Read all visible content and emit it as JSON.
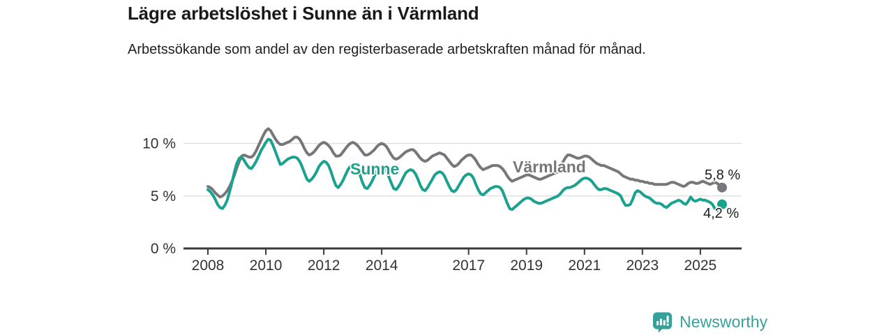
{
  "header": {
    "title": "Lägre arbetslöshet i Sunne än i Värmland",
    "subtitle": "Arbetssökande som andel av den registerbaserade arbetskraften månad för månad."
  },
  "chart_data": {
    "type": "line",
    "title": "Lägre arbetslöshet i Sunne än i Värmland",
    "subtitle": "Arbetssökande som andel av den registerbaserade arbetskraften månad för månad.",
    "frequency": "monthly",
    "x_start": "2008-01",
    "x_end": "2025-10",
    "ylim": [
      0,
      12
    ],
    "grid": "horizontal",
    "legend_position": "inline-labels",
    "yticks": [
      {
        "label": "10 %",
        "value": 10
      },
      {
        "label": "5 %",
        "value": 5
      },
      {
        "label": "0 %",
        "value": 0
      }
    ],
    "xticks": [
      {
        "label": "2008",
        "year": 2008
      },
      {
        "label": "2010",
        "year": 2010
      },
      {
        "label": "2012",
        "year": 2012
      },
      {
        "label": "2014",
        "year": 2014
      },
      {
        "label": "2017",
        "year": 2017
      },
      {
        "label": "2019",
        "year": 2019
      },
      {
        "label": "2021",
        "year": 2021
      },
      {
        "label": "2023",
        "year": 2023
      },
      {
        "label": "2025",
        "year": 2025
      }
    ],
    "series": [
      {
        "name": "Värmland",
        "color": "#76777a",
        "end_label": "5,8 %",
        "end_value": 5.8,
        "values": [
          5.9,
          5.8,
          5.6,
          5.3,
          5.1,
          4.9,
          5.0,
          5.2,
          5.5,
          5.9,
          6.4,
          7.0,
          7.7,
          8.3,
          8.8,
          8.9,
          8.8,
          8.7,
          8.7,
          8.9,
          9.3,
          9.8,
          10.3,
          10.8,
          11.2,
          11.4,
          11.2,
          10.8,
          10.4,
          10.1,
          9.9,
          9.9,
          10.0,
          10.1,
          10.2,
          10.4,
          10.6,
          10.6,
          10.4,
          10.0,
          9.5,
          9.1,
          8.9,
          9.0,
          9.2,
          9.5,
          9.8,
          10.0,
          10.1,
          10.0,
          9.8,
          9.5,
          9.1,
          8.8,
          8.8,
          8.9,
          9.2,
          9.5,
          9.8,
          10.0,
          10.1,
          10.0,
          9.8,
          9.5,
          9.2,
          8.9,
          8.9,
          9.0,
          9.2,
          9.4,
          9.7,
          9.9,
          10.0,
          9.9,
          9.7,
          9.3,
          8.9,
          8.6,
          8.5,
          8.6,
          8.8,
          9.0,
          9.2,
          9.3,
          9.4,
          9.4,
          9.2,
          8.9,
          8.6,
          8.4,
          8.3,
          8.4,
          8.6,
          8.8,
          8.9,
          9.0,
          9.1,
          9.0,
          8.9,
          8.6,
          8.3,
          8.0,
          7.8,
          7.9,
          8.1,
          8.4,
          8.6,
          8.8,
          8.9,
          8.9,
          8.7,
          8.4,
          8.0,
          7.7,
          7.5,
          7.6,
          7.7,
          7.8,
          7.9,
          7.9,
          7.9,
          7.8,
          7.6,
          7.3,
          6.9,
          6.6,
          6.4,
          6.5,
          6.6,
          6.7,
          6.8,
          6.9,
          7.0,
          7.0,
          6.9,
          6.8,
          6.7,
          6.6,
          6.6,
          6.7,
          6.8,
          6.9,
          7.0,
          7.1,
          7.2,
          7.3,
          7.6,
          8.2,
          8.6,
          8.9,
          8.9,
          8.8,
          8.7,
          8.6,
          8.6,
          8.7,
          8.8,
          8.8,
          8.7,
          8.5,
          8.3,
          8.1,
          8.0,
          7.9,
          7.9,
          7.8,
          7.7,
          7.6,
          7.5,
          7.4,
          7.3,
          7.1,
          6.9,
          6.8,
          6.7,
          6.6,
          6.6,
          6.5,
          6.5,
          6.4,
          6.4,
          6.3,
          6.3,
          6.2,
          6.2,
          6.1,
          6.1,
          6.1,
          6.1,
          6.1,
          6.1,
          6.2,
          6.3,
          6.3,
          6.2,
          6.1,
          6.0,
          5.9,
          6.0,
          6.2,
          6.3,
          6.3,
          6.2,
          6.2,
          6.3,
          6.4,
          6.3,
          6.2,
          6.1,
          6.2,
          6.3,
          6.2,
          6.0,
          5.8
        ]
      },
      {
        "name": "Sunne",
        "color": "#1aa28f",
        "end_label": "4,2 %",
        "end_value": 4.2,
        "values": [
          5.6,
          5.4,
          5.1,
          4.7,
          4.2,
          3.9,
          3.8,
          4.1,
          4.6,
          5.4,
          6.3,
          7.3,
          8.1,
          8.6,
          8.7,
          8.4,
          8.0,
          7.7,
          7.6,
          7.9,
          8.3,
          8.8,
          9.3,
          9.7,
          10.1,
          10.4,
          10.3,
          9.8,
          9.2,
          8.6,
          8.0,
          8.1,
          8.3,
          8.5,
          8.6,
          8.7,
          8.7,
          8.6,
          8.3,
          7.8,
          7.2,
          6.6,
          6.4,
          6.6,
          6.9,
          7.3,
          7.8,
          8.1,
          8.3,
          8.2,
          7.9,
          7.3,
          6.6,
          6.0,
          5.8,
          6.1,
          6.5,
          7.0,
          7.5,
          7.8,
          8.0,
          7.9,
          7.6,
          7.0,
          6.3,
          5.8,
          5.7,
          6.0,
          6.4,
          6.9,
          7.4,
          7.6,
          7.8,
          7.7,
          7.4,
          6.8,
          6.2,
          5.7,
          5.6,
          5.9,
          6.3,
          6.8,
          7.2,
          7.4,
          7.5,
          7.4,
          7.1,
          6.6,
          6.0,
          5.6,
          5.5,
          5.8,
          6.2,
          6.6,
          7.0,
          7.2,
          7.3,
          7.2,
          6.9,
          6.4,
          5.9,
          5.5,
          5.4,
          5.6,
          6.0,
          6.4,
          6.8,
          7.0,
          7.1,
          7.0,
          6.7,
          6.1,
          5.6,
          5.2,
          5.1,
          5.3,
          5.5,
          5.7,
          5.8,
          5.9,
          5.9,
          5.8,
          5.5,
          4.9,
          4.3,
          3.8,
          3.7,
          3.9,
          4.1,
          4.3,
          4.5,
          4.7,
          4.8,
          4.8,
          4.7,
          4.5,
          4.4,
          4.3,
          4.3,
          4.4,
          4.5,
          4.6,
          4.7,
          4.8,
          4.9,
          5.0,
          5.2,
          5.5,
          5.7,
          5.8,
          5.8,
          5.9,
          6.0,
          6.2,
          6.4,
          6.6,
          6.7,
          6.7,
          6.6,
          6.4,
          6.1,
          5.8,
          5.6,
          5.6,
          5.7,
          5.7,
          5.6,
          5.5,
          5.4,
          5.3,
          5.2,
          5.0,
          4.5,
          4.1,
          4.1,
          4.2,
          4.7,
          5.3,
          5.5,
          5.4,
          5.2,
          5.0,
          4.9,
          4.8,
          4.6,
          4.4,
          4.3,
          4.3,
          4.2,
          4.0,
          3.9,
          4.1,
          4.3,
          4.4,
          4.5,
          4.6,
          4.5,
          4.3,
          4.2,
          4.5,
          4.9,
          4.6,
          4.5,
          4.6,
          4.7,
          4.6,
          4.6,
          4.5,
          4.4,
          4.2,
          3.8,
          3.6,
          4.0,
          4.2
        ]
      }
    ],
    "colors": {
      "sunne": "#1aa28f",
      "varmland": "#76777a",
      "grid": "#dcdcdc",
      "axis": "#333333",
      "text": "#333333"
    }
  },
  "footer": {
    "brand": "Newsworthy",
    "logo_icon": "bar-chart-pin-icon",
    "brand_color": "#36a19b"
  }
}
